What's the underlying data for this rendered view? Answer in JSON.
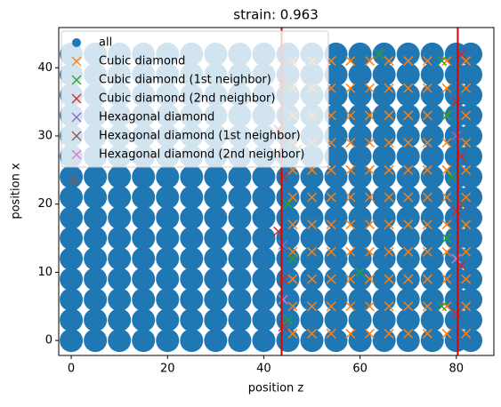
{
  "chart_data": {
    "type": "scatter",
    "title": "strain: 0.963",
    "xlabel": "position z",
    "ylabel": "position x",
    "xlim": [
      -2.6,
      87.8
    ],
    "ylim": [
      -2.2,
      45.9
    ],
    "xticks": [
      0,
      20,
      40,
      60,
      80
    ],
    "yticks": [
      0,
      10,
      20,
      30,
      40
    ],
    "vlines": [
      43.7,
      80.3
    ],
    "vline_color": "#e00000",
    "legend": "upper left",
    "series": [
      {
        "name": "all",
        "color": "#1f77b4",
        "marker": "o",
        "x": [
          0,
          5,
          10,
          15,
          20,
          25,
          30,
          35,
          40,
          45,
          50,
          55,
          60,
          65,
          70,
          75,
          80,
          83,
          0,
          5,
          10,
          15,
          20,
          25,
          30,
          35,
          40,
          45,
          50,
          55,
          60,
          65,
          70,
          75,
          80,
          83,
          0,
          5,
          10,
          15,
          20,
          25,
          30,
          35,
          40,
          45,
          50,
          55,
          60,
          65,
          70,
          75,
          80,
          83,
          0,
          5,
          10,
          15,
          20,
          25,
          30,
          35,
          40,
          45,
          50,
          55,
          60,
          65,
          70,
          75,
          80,
          83,
          0,
          5,
          10,
          15,
          20,
          25,
          30,
          35,
          40,
          45,
          50,
          55,
          60,
          65,
          70,
          75,
          80,
          83,
          0,
          5,
          10,
          15,
          20,
          25,
          30,
          35,
          40,
          45,
          50,
          55,
          60,
          65,
          70,
          75,
          80,
          83,
          0,
          5,
          10,
          15,
          20,
          25,
          30,
          35,
          40,
          45,
          50,
          55,
          60,
          65,
          70,
          75,
          80,
          83,
          0,
          5,
          10,
          15,
          20,
          25,
          30,
          35,
          40,
          45,
          50,
          55,
          60,
          65,
          70,
          75,
          80,
          83,
          0,
          5,
          10,
          15,
          20,
          25,
          30,
          35,
          40,
          45,
          50,
          55,
          60,
          65,
          70,
          75,
          80,
          83,
          0,
          5,
          10,
          15,
          20,
          25,
          30,
          35,
          40,
          45,
          50,
          55,
          60,
          65,
          70,
          75,
          80,
          83,
          0,
          5,
          10,
          15,
          20,
          25,
          30,
          35,
          40,
          45,
          50,
          55,
          60,
          65,
          70,
          75,
          80,
          83,
          0,
          5,
          10,
          15,
          20,
          25,
          30,
          35,
          40,
          45,
          50,
          55,
          60,
          65,
          70,
          75,
          80,
          83,
          0,
          5,
          10,
          15,
          20,
          25,
          30,
          35,
          40,
          45,
          50,
          55,
          60,
          65,
          70,
          75,
          80,
          83,
          0,
          5,
          10,
          15,
          20,
          25,
          30,
          35,
          40,
          45,
          50,
          55,
          60,
          65,
          70,
          75,
          80,
          83,
          0,
          5,
          10,
          15,
          20,
          25,
          30,
          35,
          40,
          45,
          50,
          55,
          60,
          65,
          70,
          75,
          80,
          83
        ],
        "y": [
          0,
          0,
          0,
          0,
          0,
          0,
          0,
          0,
          0,
          0,
          0,
          0,
          0,
          0,
          0,
          0,
          0,
          0,
          3,
          3,
          3,
          3,
          3,
          3,
          3,
          3,
          3,
          3,
          3,
          3,
          3,
          3,
          3,
          3,
          3,
          3,
          6,
          6,
          6,
          6,
          6,
          6,
          6,
          6,
          6,
          6,
          6,
          6,
          6,
          6,
          6,
          6,
          6,
          6,
          9,
          9,
          9,
          9,
          9,
          9,
          9,
          9,
          9,
          9,
          9,
          9,
          9,
          9,
          9,
          9,
          9,
          9,
          12,
          12,
          12,
          12,
          12,
          12,
          12,
          12,
          12,
          12,
          12,
          12,
          12,
          12,
          12,
          12,
          12,
          12,
          15,
          15,
          15,
          15,
          15,
          15,
          15,
          15,
          15,
          15,
          15,
          15,
          15,
          15,
          15,
          15,
          15,
          15,
          18,
          18,
          18,
          18,
          18,
          18,
          18,
          18,
          18,
          18,
          18,
          18,
          18,
          18,
          18,
          18,
          18,
          18,
          21,
          21,
          21,
          21,
          21,
          21,
          21,
          21,
          21,
          21,
          21,
          21,
          21,
          21,
          21,
          21,
          21,
          21,
          24,
          24,
          24,
          24,
          24,
          24,
          24,
          24,
          24,
          24,
          24,
          24,
          24,
          24,
          24,
          24,
          24,
          24,
          27,
          27,
          27,
          27,
          27,
          27,
          27,
          27,
          27,
          27,
          27,
          27,
          27,
          27,
          27,
          27,
          27,
          27,
          30,
          30,
          30,
          30,
          30,
          30,
          30,
          30,
          30,
          30,
          30,
          30,
          30,
          30,
          30,
          30,
          30,
          30,
          33,
          33,
          33,
          33,
          33,
          33,
          33,
          33,
          33,
          33,
          33,
          33,
          33,
          33,
          33,
          33,
          33,
          33,
          36,
          36,
          36,
          36,
          36,
          36,
          36,
          36,
          36,
          36,
          36,
          36,
          36,
          36,
          36,
          36,
          36,
          36,
          39,
          39,
          39,
          39,
          39,
          39,
          39,
          39,
          39,
          39,
          39,
          39,
          39,
          39,
          39,
          39,
          39,
          39,
          42,
          42,
          42,
          42,
          42,
          42,
          42,
          42,
          42,
          42,
          42,
          42,
          42,
          42,
          42,
          42,
          42,
          42
        ]
      },
      {
        "name": "Cubic diamond",
        "color": "#ff7f0e",
        "marker": "x",
        "x": [
          46,
          50,
          54,
          58,
          62,
          66,
          70,
          74,
          78,
          82,
          46,
          50,
          54,
          58,
          62,
          66,
          70,
          74,
          78,
          82,
          46,
          50,
          54,
          58,
          62,
          66,
          70,
          74,
          78,
          82,
          46,
          50,
          54,
          58,
          62,
          66,
          70,
          74,
          78,
          82,
          46,
          50,
          54,
          58,
          62,
          66,
          70,
          74,
          78,
          82,
          46,
          50,
          54,
          58,
          62,
          66,
          70,
          74,
          78,
          82,
          46,
          50,
          54,
          58,
          62,
          66,
          70,
          74,
          78,
          82,
          46,
          50,
          54,
          58,
          62,
          66,
          70,
          74,
          78,
          82,
          46,
          50,
          54,
          58,
          62,
          66,
          70,
          74,
          78,
          82,
          46,
          50,
          54,
          58,
          62,
          66,
          70,
          74,
          78,
          82,
          46,
          50,
          54,
          58,
          62,
          66,
          70,
          74,
          78,
          82
        ],
        "y": [
          1,
          1,
          1,
          1,
          1,
          1,
          1,
          1,
          1,
          1,
          5,
          5,
          5,
          5,
          5,
          5,
          5,
          5,
          5,
          5,
          9,
          9,
          9,
          9,
          9,
          9,
          9,
          9,
          9,
          9,
          13,
          13,
          13,
          13,
          13,
          13,
          13,
          13,
          13,
          13,
          17,
          17,
          17,
          17,
          17,
          17,
          17,
          17,
          17,
          17,
          21,
          21,
          21,
          21,
          21,
          21,
          21,
          21,
          21,
          21,
          25,
          25,
          25,
          25,
          25,
          25,
          25,
          25,
          25,
          25,
          29,
          29,
          29,
          29,
          29,
          29,
          29,
          29,
          29,
          29,
          33,
          33,
          33,
          33,
          33,
          33,
          33,
          33,
          33,
          33,
          37,
          37,
          37,
          37,
          37,
          37,
          37,
          37,
          37,
          37,
          41,
          41,
          41,
          41,
          41,
          41,
          41,
          41,
          41,
          41
        ]
      },
      {
        "name": "Cubic diamond (1st neighbor)",
        "color": "#2ca02c",
        "marker": "x",
        "x": [
          45,
          46,
          45,
          47,
          45,
          77,
          78,
          79,
          78,
          77,
          60,
          64
        ],
        "y": [
          3,
          12,
          20,
          28,
          37,
          5,
          15,
          24,
          33,
          41,
          10,
          42
        ]
      },
      {
        "name": "Cubic diamond (2nd neighbor)",
        "color": "#d62728",
        "marker": "x",
        "x": [
          44,
          44,
          43,
          44,
          43,
          44,
          80,
          81,
          80,
          81,
          80,
          81
        ],
        "y": [
          2,
          9,
          16,
          24,
          31,
          38,
          4,
          11,
          19,
          27,
          35,
          42
        ]
      },
      {
        "name": "Hexagonal diamond",
        "color": "#9467bd",
        "marker": "x",
        "x": [
          44,
          80
        ],
        "y": [
          14,
          30
        ]
      },
      {
        "name": "Hexagonal diamond (1st neighbor)",
        "color": "#8c564b",
        "marker": "x",
        "x": [
          43,
          81,
          0.5
        ],
        "y": [
          27,
          20,
          23.5
        ]
      },
      {
        "name": "Hexagonal diamond (2nd neighbor)",
        "color": "#e377c2",
        "marker": "x",
        "x": [
          44,
          80
        ],
        "y": [
          6,
          12
        ]
      }
    ]
  }
}
